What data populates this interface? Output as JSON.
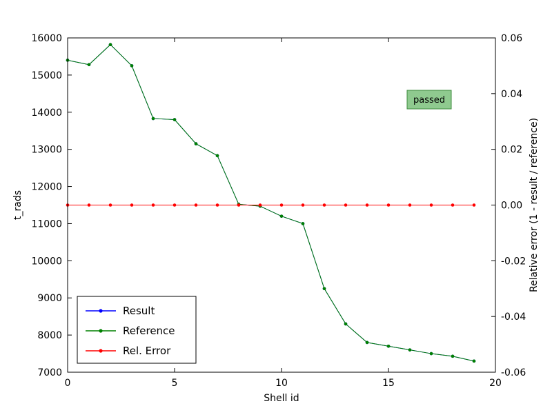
{
  "chart_data": {
    "type": "line",
    "title": "",
    "xlabel": "Shell id",
    "ylabel_left": "t_rads",
    "ylabel_right": "Relative error (1 - result / reference)",
    "xlim": [
      0,
      20
    ],
    "ylim_left": [
      7000,
      16000
    ],
    "ylim_right": [
      -0.06,
      0.06
    ],
    "xticks": [
      0,
      5,
      10,
      15,
      20
    ],
    "yticks_left": [
      7000,
      8000,
      9000,
      10000,
      11000,
      12000,
      13000,
      14000,
      15000,
      16000
    ],
    "yticks_right": [
      -0.06,
      -0.04,
      -0.02,
      0.0,
      0.02,
      0.04,
      0.06
    ],
    "grid": false,
    "x": [
      0,
      1,
      2,
      3,
      4,
      5,
      6,
      7,
      8,
      9,
      10,
      11,
      12,
      13,
      14,
      15,
      16,
      17,
      18,
      19
    ],
    "series": [
      {
        "name": "Result",
        "color": "#0000ff",
        "axis": "left",
        "values": [
          15400,
          15280,
          15820,
          15250,
          13830,
          13800,
          13150,
          12830,
          11520,
          11470,
          11200,
          11000,
          9250,
          8300,
          7800,
          7700,
          7600,
          7500,
          7430,
          7300
        ]
      },
      {
        "name": "Reference",
        "color": "#008000",
        "axis": "left",
        "values": [
          15400,
          15280,
          15820,
          15250,
          13830,
          13800,
          13150,
          12830,
          11520,
          11470,
          11200,
          11000,
          9250,
          8300,
          7800,
          7700,
          7600,
          7500,
          7430,
          7300
        ]
      },
      {
        "name": "Rel. Error",
        "color": "#ff0000",
        "axis": "right",
        "values": [
          0,
          0,
          0,
          0,
          0,
          0,
          0,
          0,
          0,
          0,
          0,
          0,
          0,
          0,
          0,
          0,
          0,
          0,
          0,
          0
        ]
      }
    ],
    "legend": {
      "position": "lower left",
      "entries": [
        "Result",
        "Reference",
        "Rel. Error"
      ]
    },
    "badge": {
      "label": "passed",
      "fill": "#8fca8f",
      "border": "#3d8b3d"
    }
  }
}
